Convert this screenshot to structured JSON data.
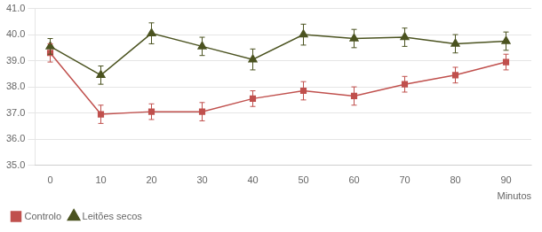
{
  "chart_data": {
    "type": "line",
    "x": [
      0,
      10,
      20,
      30,
      40,
      50,
      60,
      70,
      80,
      90
    ],
    "xlabel": "Minutos",
    "xlim": [
      -3,
      95
    ],
    "xticks": [
      0,
      10,
      20,
      30,
      40,
      50,
      60,
      70,
      80,
      90
    ],
    "ylim": [
      35,
      41
    ],
    "yticks": [
      {
        "value": 35,
        "label": "35.0"
      },
      {
        "value": 36,
        "label": "36.0"
      },
      {
        "value": 37,
        "label": "37.0"
      },
      {
        "value": 38,
        "label": "38.0"
      },
      {
        "value": 39,
        "label": "39.0"
      },
      {
        "value": 40,
        "label": "40.0"
      },
      {
        "value": 41,
        "label": "41.0"
      }
    ],
    "grid": "y",
    "legend": "bottom",
    "series": [
      {
        "name": "Controlo",
        "color": "#C0504D",
        "marker": "square",
        "values": [
          39.3,
          36.95,
          37.05,
          37.05,
          37.55,
          37.85,
          37.65,
          38.1,
          38.45,
          38.95
        ],
        "errors": [
          0.35,
          0.35,
          0.3,
          0.35,
          0.3,
          0.35,
          0.35,
          0.3,
          0.3,
          0.3
        ]
      },
      {
        "name": "Leitões secos",
        "color": "#4B5320",
        "marker": "triangle",
        "values": [
          39.55,
          38.45,
          40.05,
          39.55,
          39.05,
          40.0,
          39.85,
          39.9,
          39.65,
          39.75
        ],
        "errors": [
          0.3,
          0.35,
          0.4,
          0.35,
          0.4,
          0.4,
          0.35,
          0.35,
          0.35,
          0.35
        ]
      }
    ]
  }
}
